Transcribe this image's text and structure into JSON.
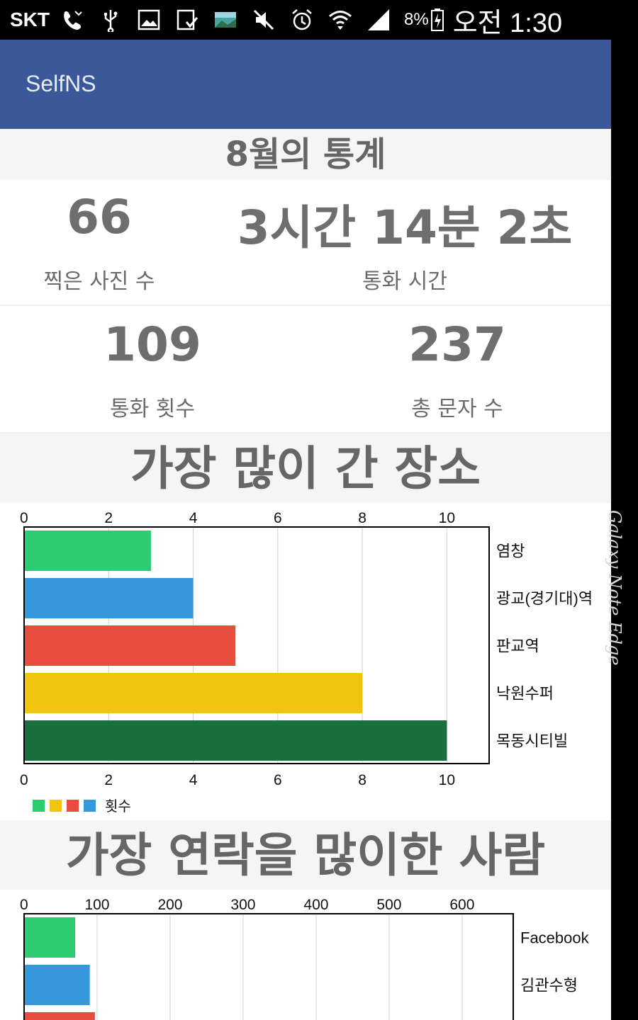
{
  "status_bar": {
    "carrier": "SKT",
    "icons": [
      "phone-missed-icon",
      "usb-icon",
      "image-icon",
      "download-icon",
      "gallery-icon",
      "mute-icon",
      "alarm-icon",
      "wifi-icon",
      "signal-icon",
      "battery-icon"
    ],
    "battery_percent": "8%",
    "time": "오전 1:30"
  },
  "device_edge": {
    "label": "Galaxy Note Edge"
  },
  "app_bar": {
    "title": "SelfNS",
    "color": "#3b5998"
  },
  "month_stats": {
    "title": "8월의 통계",
    "stats": [
      {
        "value": "66",
        "label": "찍은 사진 수"
      },
      {
        "value": "3시간 14분 2초",
        "label": "통화 시간"
      },
      {
        "value": "109",
        "label": "통화 횟수"
      },
      {
        "value": "237",
        "label": "총 문자 수"
      }
    ]
  },
  "places_section": {
    "title": "가장 많이 간 장소"
  },
  "contacts_section": {
    "title": "가장 연락을 많이한 사람"
  },
  "chart_data": [
    {
      "type": "bar",
      "orientation": "horizontal",
      "categories": [
        "염창",
        "광교(경기대)역",
        "판교역",
        "낙원수퍼",
        "목동시티빌"
      ],
      "values": [
        3,
        4,
        5,
        8,
        10
      ],
      "colors": [
        "#2ecc71",
        "#3498db",
        "#e74c3c",
        "#f1c40f",
        "#196f3d"
      ],
      "xlim": [
        0,
        11
      ],
      "ticks": [
        "0",
        "2",
        "4",
        "6",
        "8",
        "10"
      ],
      "tick_values": [
        0,
        2,
        4,
        6,
        8,
        10
      ],
      "axis_ticks_top": true,
      "axis_ticks_bottom": true,
      "grid": true,
      "legend": {
        "label": "횟수",
        "colors": [
          "#2ecc71",
          "#f1c40f",
          "#e74c3c",
          "#3498db"
        ],
        "placement": "bottom-left"
      }
    },
    {
      "type": "bar",
      "orientation": "horizontal",
      "categories": [
        "Facebook",
        "김관수형",
        ""
      ],
      "values": [
        70,
        90,
        97
      ],
      "colors": [
        "#2ecc71",
        "#3498db",
        "#e74c3c"
      ],
      "xlim": [
        0,
        670
      ],
      "ticks": [
        "0",
        "100",
        "200",
        "300",
        "400",
        "500",
        "600"
      ],
      "tick_values": [
        0,
        100,
        200,
        300,
        400,
        500,
        600
      ],
      "axis_ticks_top": true,
      "grid": true
    }
  ]
}
